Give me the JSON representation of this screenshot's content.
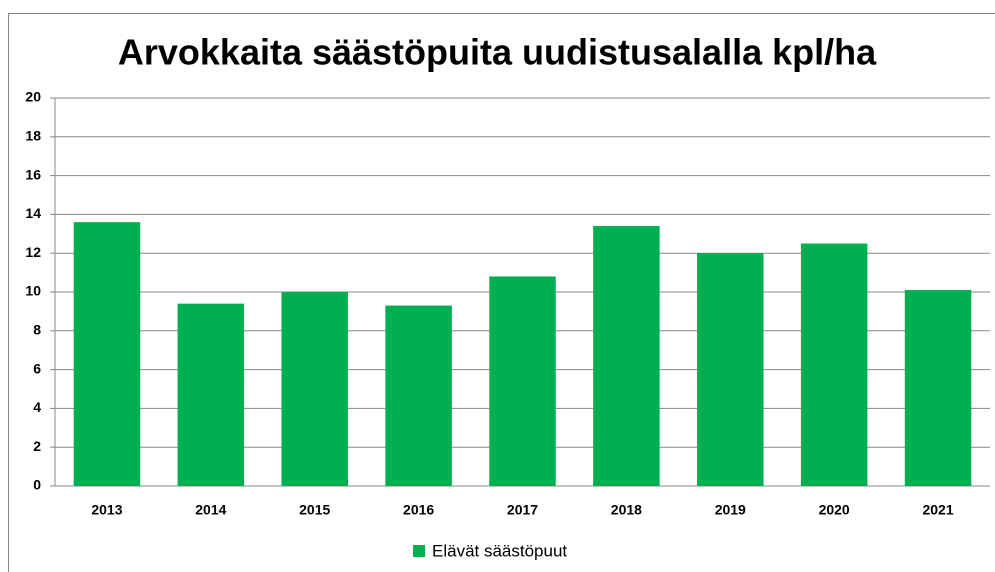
{
  "chart_data": {
    "type": "bar",
    "title": "Arvokkaita säästöpuita uudistusalalla kpl/ha",
    "categories": [
      "2013",
      "2014",
      "2015",
      "2016",
      "2017",
      "2018",
      "2019",
      "2020",
      "2021"
    ],
    "series": [
      {
        "name": "Elävät säästöpuut",
        "color": "#00b050",
        "values": [
          13.6,
          9.4,
          10.0,
          9.3,
          10.8,
          13.4,
          12.0,
          12.5,
          10.1
        ]
      }
    ],
    "ylim": [
      0,
      20
    ],
    "yticks": [
      0,
      2,
      4,
      6,
      8,
      10,
      12,
      14,
      16,
      18,
      20
    ],
    "grid": true,
    "legend": "bottom"
  }
}
